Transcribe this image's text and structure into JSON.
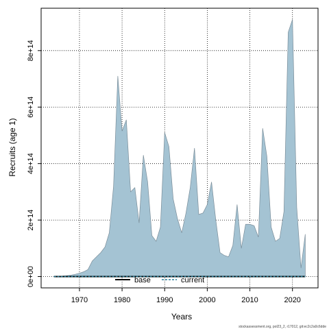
{
  "chart_data": {
    "type": "area",
    "xlabel": "Years",
    "ylabel": "Recruits (age 1)",
    "xlim": [
      1961,
      2026
    ],
    "ylim": [
      -40000000000000,
      950000000000000
    ],
    "x_ticks": [
      1970,
      1980,
      1990,
      2000,
      2010,
      2020
    ],
    "x_tick_labels": [
      "1970",
      "1980",
      "1990",
      "2000",
      "2010",
      "2020"
    ],
    "y_ticks": [
      0,
      200000000000000,
      400000000000000,
      600000000000000,
      800000000000000
    ],
    "y_tick_labels": [
      "0e+00",
      "2e+14",
      "4e+14",
      "6e+14",
      "8e+14"
    ],
    "grid": true,
    "fill_color": "#a4c3d3",
    "line_color": "#7a8d99",
    "series": [
      {
        "name": "current",
        "color": "#2a7f9a",
        "x": [
          1964,
          1965,
          1966,
          1967,
          1968,
          1969,
          1970,
          1971,
          1972,
          1973,
          1974,
          1975,
          1976,
          1977,
          1978,
          1979,
          1980,
          1981,
          1982,
          1983,
          1984,
          1985,
          1986,
          1987,
          1988,
          1989,
          1990,
          1991,
          1992,
          1993,
          1994,
          1995,
          1996,
          1997,
          1998,
          1999,
          2000,
          2001,
          2002,
          2003,
          2004,
          2005,
          2006,
          2007,
          2008,
          2009,
          2010,
          2011,
          2012,
          2013,
          2014,
          2015,
          2016,
          2017,
          2018,
          2019,
          2020,
          2021,
          2022,
          2023
        ],
        "values": [
          0,
          1000000000000,
          2000000000000,
          3000000000000,
          5000000000000,
          8000000000000,
          12000000000000,
          17000000000000,
          25000000000000,
          55000000000000,
          70000000000000,
          85000000000000,
          105000000000000,
          155000000000000,
          320000000000000,
          710000000000000,
          515000000000000,
          555000000000000,
          300000000000000,
          315000000000000,
          190000000000000,
          430000000000000,
          335000000000000,
          145000000000000,
          125000000000000,
          175000000000000,
          510000000000000,
          460000000000000,
          275000000000000,
          205000000000000,
          155000000000000,
          225000000000000,
          315000000000000,
          455000000000000,
          220000000000000,
          225000000000000,
          255000000000000,
          335000000000000,
          200000000000000,
          85000000000000,
          75000000000000,
          70000000000000,
          110000000000000,
          255000000000000,
          100000000000000,
          185000000000000,
          185000000000000,
          180000000000000,
          140000000000000,
          525000000000000,
          425000000000000,
          175000000000000,
          125000000000000,
          135000000000000,
          230000000000000,
          865000000000000,
          910000000000000,
          245000000000000,
          30000000000000,
          150000000000000
        ]
      }
    ],
    "baseline": {
      "name": "base",
      "color": "#000000",
      "x": [
        1964,
        2023
      ],
      "values": [
        0,
        0
      ]
    },
    "legend": {
      "position": "bottom-center",
      "items": [
        {
          "label": "base",
          "color": "#000000",
          "dash": "solid"
        },
        {
          "label": "current",
          "color": "#2a7f9a",
          "dash": "dashed"
        }
      ]
    },
    "footer": "stockassessment.org, pol23_2, r17012, git:ec2c2a0c6dde"
  }
}
